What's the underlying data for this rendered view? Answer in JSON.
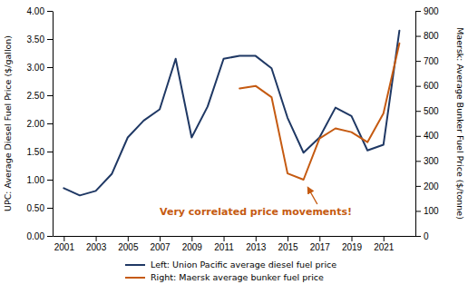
{
  "chart_data": {
    "type": "line",
    "x": [
      2001,
      2002,
      2003,
      2004,
      2005,
      2006,
      2007,
      2008,
      2009,
      2010,
      2011,
      2012,
      2013,
      2014,
      2015,
      2016,
      2017,
      2018,
      2019,
      2020,
      2021,
      2022
    ],
    "series": [
      {
        "name": "Left: Union Pacific average diesel fuel price",
        "color": "#1f3864",
        "values": [
          0.85,
          0.72,
          0.8,
          1.1,
          1.75,
          2.05,
          2.25,
          3.15,
          1.75,
          2.3,
          3.15,
          3.2,
          3.2,
          2.98,
          2.1,
          1.48,
          1.75,
          2.28,
          2.13,
          1.52,
          1.62,
          3.65
        ]
      },
      {
        "name": "Right: Maersk average bunker fuel price",
        "color": "#c55a11",
        "axis": "y2",
        "values": [
          null,
          null,
          null,
          null,
          null,
          null,
          null,
          null,
          null,
          null,
          null,
          590,
          600,
          555,
          250,
          225,
          390,
          430,
          415,
          375,
          490,
          770
        ]
      }
    ],
    "ylabel": "UPC: Average Diesel Fuel Price ($/gallon)",
    "y2label": "Maersk: Average Bunker Fuel Price ($/tonne)",
    "xlim": [
      2000.3,
      2023.0
    ],
    "xticks": [
      2001,
      2003,
      2005,
      2007,
      2009,
      2011,
      2013,
      2015,
      2017,
      2019,
      2021
    ],
    "ylim": [
      0.0,
      4.0
    ],
    "yticks": [
      {
        "value": 0.0,
        "label": "0.00"
      },
      {
        "value": 0.5,
        "label": "0.50"
      },
      {
        "value": 1.0,
        "label": "1.00"
      },
      {
        "value": 1.5,
        "label": "1.50"
      },
      {
        "value": 2.0,
        "label": "2.00"
      },
      {
        "value": 2.5,
        "label": "2.50"
      },
      {
        "value": 3.0,
        "label": "3.00"
      },
      {
        "value": 3.5,
        "label": "3.50"
      },
      {
        "value": 4.0,
        "label": "4.00"
      }
    ],
    "y2lim": [
      0,
      900
    ],
    "y2ticks": [
      0,
      100,
      200,
      300,
      400,
      500,
      600,
      700,
      800,
      900
    ],
    "annotations": [
      {
        "text": "Very correlated price movements!",
        "color": "#c55a11"
      }
    ],
    "legend": "bottom",
    "grid": false
  }
}
